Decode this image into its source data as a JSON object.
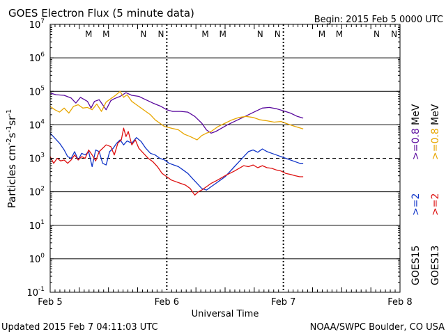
{
  "chart_data": {
    "type": "line",
    "title": "GOES Electron Flux (5 minute data)",
    "begin_label": "Begin: 2015 Feb 5 0000 UTC",
    "xlabel": "Universal Time",
    "ylabel_main": "Particles cm",
    "ylabel_s": "s",
    "ylabel_sr": "sr",
    "ylabel_exp": "-2",
    "ylabel_exp2": "-1",
    "ylabel_exp3": "-1",
    "x_ticks": [
      "Feb 5",
      "Feb 6",
      "Feb 7",
      "Feb 8"
    ],
    "xlim_days": [
      0,
      3
    ],
    "y_ticks": [
      {
        "base": "10",
        "exp": "7"
      },
      {
        "base": "10",
        "exp": "6"
      },
      {
        "base": "10",
        "exp": "5"
      },
      {
        "base": "10",
        "exp": "4"
      },
      {
        "base": "10",
        "exp": "3"
      },
      {
        "base": "10",
        "exp": "2"
      },
      {
        "base": "10",
        "exp": "1"
      },
      {
        "base": "10",
        "exp": "0"
      },
      {
        "base": "10",
        "exp": "-1"
      }
    ],
    "ylim_log10": [
      -1,
      7
    ],
    "threshold_log10": 3,
    "grid_log10": [
      6,
      5,
      4,
      3,
      2,
      1,
      0
    ],
    "markers": [
      {
        "label": "M",
        "day": 0.33,
        "color": "#cc0000"
      },
      {
        "label": "M",
        "day": 0.48,
        "color": "#1f3fbf"
      },
      {
        "label": "N",
        "day": 0.8,
        "color": "#cc0000"
      },
      {
        "label": "N",
        "day": 0.95,
        "color": "#1f3fbf"
      },
      {
        "label": "M",
        "day": 1.33,
        "color": "#cc0000"
      },
      {
        "label": "M",
        "day": 1.48,
        "color": "#1f3fbf"
      },
      {
        "label": "N",
        "day": 1.8,
        "color": "#cc0000"
      },
      {
        "label": "N",
        "day": 1.95,
        "color": "#1f3fbf"
      },
      {
        "label": "M",
        "day": 2.33,
        "color": "#cc0000"
      },
      {
        "label": "M",
        "day": 2.48,
        "color": "#1f3fbf"
      },
      {
        "label": "N",
        "day": 2.8,
        "color": "#cc0000"
      },
      {
        "label": "N",
        "day": 2.95,
        "color": "#1f3fbf"
      }
    ],
    "series": [
      {
        "name": ">=0.8 MeV",
        "satellite": "GOES15",
        "color": "#5a0a9e",
        "points": [
          [
            0.0,
            4.95
          ],
          [
            0.05,
            4.9
          ],
          [
            0.12,
            4.88
          ],
          [
            0.18,
            4.8
          ],
          [
            0.22,
            4.65
          ],
          [
            0.26,
            4.82
          ],
          [
            0.32,
            4.7
          ],
          [
            0.35,
            4.5
          ],
          [
            0.38,
            4.7
          ],
          [
            0.42,
            4.75
          ],
          [
            0.48,
            4.45
          ],
          [
            0.52,
            4.72
          ],
          [
            0.55,
            4.78
          ],
          [
            0.6,
            4.85
          ],
          [
            0.65,
            4.96
          ],
          [
            0.7,
            4.88
          ],
          [
            0.76,
            4.85
          ],
          [
            0.82,
            4.75
          ],
          [
            0.88,
            4.65
          ],
          [
            0.95,
            4.55
          ],
          [
            1.0,
            4.45
          ],
          [
            1.05,
            4.4
          ],
          [
            1.12,
            4.4
          ],
          [
            1.18,
            4.38
          ],
          [
            1.24,
            4.25
          ],
          [
            1.3,
            4.05
          ],
          [
            1.34,
            3.85
          ],
          [
            1.38,
            3.75
          ],
          [
            1.42,
            3.8
          ],
          [
            1.47,
            3.9
          ],
          [
            1.52,
            4.0
          ],
          [
            1.58,
            4.1
          ],
          [
            1.64,
            4.2
          ],
          [
            1.7,
            4.3
          ],
          [
            1.76,
            4.4
          ],
          [
            1.82,
            4.5
          ],
          [
            1.88,
            4.52
          ],
          [
            1.94,
            4.48
          ],
          [
            2.0,
            4.42
          ],
          [
            2.06,
            4.35
          ],
          [
            2.12,
            4.25
          ],
          [
            2.17,
            4.2
          ]
        ]
      },
      {
        "name": ">=0.8 MeV",
        "satellite": "GOES13",
        "color": "#e8a600",
        "points": [
          [
            0.0,
            4.55
          ],
          [
            0.04,
            4.45
          ],
          [
            0.08,
            4.38
          ],
          [
            0.12,
            4.5
          ],
          [
            0.16,
            4.35
          ],
          [
            0.2,
            4.55
          ],
          [
            0.24,
            4.6
          ],
          [
            0.28,
            4.5
          ],
          [
            0.32,
            4.52
          ],
          [
            0.36,
            4.45
          ],
          [
            0.4,
            4.62
          ],
          [
            0.44,
            4.4
          ],
          [
            0.48,
            4.68
          ],
          [
            0.52,
            4.78
          ],
          [
            0.56,
            4.88
          ],
          [
            0.6,
            5.0
          ],
          [
            0.63,
            4.82
          ],
          [
            0.66,
            4.9
          ],
          [
            0.7,
            4.7
          ],
          [
            0.74,
            4.6
          ],
          [
            0.78,
            4.5
          ],
          [
            0.82,
            4.4
          ],
          [
            0.86,
            4.3
          ],
          [
            0.9,
            4.15
          ],
          [
            0.94,
            4.05
          ],
          [
            0.98,
            3.95
          ],
          [
            1.04,
            3.9
          ],
          [
            1.1,
            3.85
          ],
          [
            1.15,
            3.72
          ],
          [
            1.2,
            3.65
          ],
          [
            1.26,
            3.55
          ],
          [
            1.3,
            3.68
          ],
          [
            1.34,
            3.75
          ],
          [
            1.38,
            3.8
          ],
          [
            1.44,
            3.95
          ],
          [
            1.5,
            4.05
          ],
          [
            1.56,
            4.15
          ],
          [
            1.62,
            4.22
          ],
          [
            1.68,
            4.25
          ],
          [
            1.74,
            4.22
          ],
          [
            1.8,
            4.15
          ],
          [
            1.86,
            4.12
          ],
          [
            1.92,
            4.08
          ],
          [
            1.98,
            4.1
          ],
          [
            2.04,
            4.02
          ],
          [
            2.1,
            3.95
          ],
          [
            2.17,
            3.88
          ]
        ]
      },
      {
        "name": ">=2 MeV",
        "satellite": "GOES15",
        "color": "#1034c8",
        "points": [
          [
            0.0,
            3.75
          ],
          [
            0.04,
            3.6
          ],
          [
            0.08,
            3.45
          ],
          [
            0.12,
            3.25
          ],
          [
            0.15,
            3.05
          ],
          [
            0.18,
            3.0
          ],
          [
            0.21,
            3.2
          ],
          [
            0.24,
            2.95
          ],
          [
            0.27,
            3.15
          ],
          [
            0.3,
            3.1
          ],
          [
            0.33,
            3.2
          ],
          [
            0.36,
            2.75
          ],
          [
            0.39,
            3.25
          ],
          [
            0.42,
            3.2
          ],
          [
            0.45,
            2.85
          ],
          [
            0.48,
            2.8
          ],
          [
            0.51,
            3.2
          ],
          [
            0.54,
            3.3
          ],
          [
            0.57,
            3.45
          ],
          [
            0.6,
            3.55
          ],
          [
            0.63,
            3.4
          ],
          [
            0.66,
            3.52
          ],
          [
            0.7,
            3.45
          ],
          [
            0.74,
            3.62
          ],
          [
            0.78,
            3.5
          ],
          [
            0.82,
            3.3
          ],
          [
            0.86,
            3.15
          ],
          [
            0.9,
            3.1
          ],
          [
            0.94,
            3.0
          ],
          [
            0.98,
            2.95
          ],
          [
            1.02,
            2.85
          ],
          [
            1.06,
            2.8
          ],
          [
            1.1,
            2.75
          ],
          [
            1.14,
            2.65
          ],
          [
            1.18,
            2.55
          ],
          [
            1.22,
            2.4
          ],
          [
            1.26,
            2.25
          ],
          [
            1.3,
            2.1
          ],
          [
            1.34,
            2.05
          ],
          [
            1.38,
            2.15
          ],
          [
            1.42,
            2.25
          ],
          [
            1.46,
            2.35
          ],
          [
            1.5,
            2.45
          ],
          [
            1.54,
            2.6
          ],
          [
            1.58,
            2.75
          ],
          [
            1.62,
            2.9
          ],
          [
            1.66,
            3.05
          ],
          [
            1.7,
            3.2
          ],
          [
            1.74,
            3.25
          ],
          [
            1.78,
            3.18
          ],
          [
            1.82,
            3.28
          ],
          [
            1.86,
            3.2
          ],
          [
            1.9,
            3.15
          ],
          [
            1.94,
            3.1
          ],
          [
            1.98,
            3.05
          ],
          [
            2.02,
            3.0
          ],
          [
            2.06,
            2.95
          ],
          [
            2.1,
            2.9
          ],
          [
            2.14,
            2.85
          ],
          [
            2.17,
            2.85
          ]
        ]
      },
      {
        "name": ">=2 MeV",
        "satellite": "GOES13",
        "color": "#dd1010",
        "points": [
          [
            0.0,
            3.05
          ],
          [
            0.03,
            2.85
          ],
          [
            0.06,
            3.0
          ],
          [
            0.09,
            2.92
          ],
          [
            0.12,
            2.95
          ],
          [
            0.15,
            2.85
          ],
          [
            0.18,
            2.95
          ],
          [
            0.21,
            3.1
          ],
          [
            0.24,
            2.95
          ],
          [
            0.27,
            3.05
          ],
          [
            0.3,
            3.0
          ],
          [
            0.33,
            3.25
          ],
          [
            0.36,
            3.1
          ],
          [
            0.39,
            2.92
          ],
          [
            0.42,
            3.2
          ],
          [
            0.45,
            3.3
          ],
          [
            0.48,
            3.4
          ],
          [
            0.52,
            3.35
          ],
          [
            0.55,
            3.1
          ],
          [
            0.58,
            3.45
          ],
          [
            0.61,
            3.55
          ],
          [
            0.63,
            3.9
          ],
          [
            0.65,
            3.65
          ],
          [
            0.67,
            3.8
          ],
          [
            0.7,
            3.4
          ],
          [
            0.73,
            3.55
          ],
          [
            0.76,
            3.3
          ],
          [
            0.8,
            3.15
          ],
          [
            0.84,
            3.0
          ],
          [
            0.88,
            2.9
          ],
          [
            0.92,
            2.75
          ],
          [
            0.96,
            2.55
          ],
          [
            1.0,
            2.45
          ],
          [
            1.04,
            2.35
          ],
          [
            1.08,
            2.3
          ],
          [
            1.12,
            2.25
          ],
          [
            1.16,
            2.2
          ],
          [
            1.2,
            2.1
          ],
          [
            1.24,
            1.9
          ],
          [
            1.27,
            2.0
          ],
          [
            1.3,
            2.05
          ],
          [
            1.34,
            2.15
          ],
          [
            1.38,
            2.25
          ],
          [
            1.42,
            2.32
          ],
          [
            1.46,
            2.4
          ],
          [
            1.5,
            2.48
          ],
          [
            1.54,
            2.55
          ],
          [
            1.58,
            2.62
          ],
          [
            1.62,
            2.7
          ],
          [
            1.66,
            2.78
          ],
          [
            1.7,
            2.75
          ],
          [
            1.74,
            2.8
          ],
          [
            1.78,
            2.72
          ],
          [
            1.82,
            2.78
          ],
          [
            1.86,
            2.72
          ],
          [
            1.9,
            2.7
          ],
          [
            1.94,
            2.65
          ],
          [
            1.98,
            2.62
          ],
          [
            2.02,
            2.55
          ],
          [
            2.06,
            2.52
          ],
          [
            2.1,
            2.48
          ],
          [
            2.14,
            2.45
          ],
          [
            2.17,
            2.45
          ]
        ]
      }
    ],
    "legend": {
      "line1_sat": "GOES15",
      "line1_a": ">=2",
      "line1_b": ">=0.8",
      "line2_sat": "GOES13",
      "line2_a": ">=2",
      "line2_b": ">=0.8",
      "unit": "MeV",
      "color_goes15_2": "#1034c8",
      "color_goes15_08": "#5a0a9e",
      "color_goes13_2": "#dd1010",
      "color_goes13_08": "#e8a600"
    }
  },
  "footer": {
    "updated": "Updated 2015 Feb  7 04:11:03 UTC",
    "credit": "NOAA/SWPC Boulder, CO USA"
  }
}
